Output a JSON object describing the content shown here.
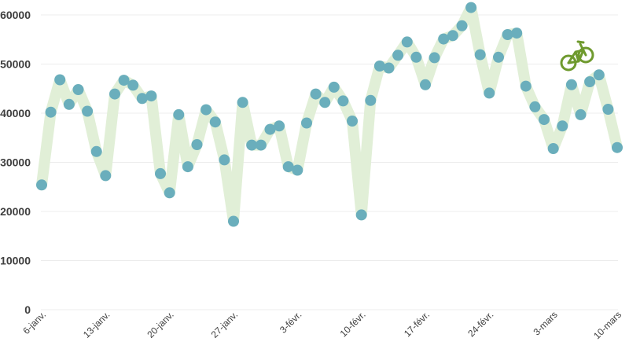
{
  "chart_data": {
    "type": "line",
    "title": "",
    "xlabel": "",
    "ylabel": "",
    "ylim": [
      0,
      60000
    ],
    "yticks": [
      0,
      10000,
      20000,
      30000,
      40000,
      50000,
      60000
    ],
    "x_tick_labels": [
      "6-janv.",
      "13-janv.",
      "20-janv.",
      "27-janv.",
      "3-févr.",
      "10-févr.",
      "17-févr.",
      "24-févr.",
      "3-mars",
      "10-mars"
    ],
    "grid": true,
    "legend": "none",
    "series": [
      {
        "values": [
          25400,
          40200,
          46800,
          41800,
          44800,
          40400,
          32200,
          27300,
          43900,
          46700,
          45700,
          43000,
          43500,
          27700,
          23800,
          39700,
          29100,
          33600,
          40700,
          38200,
          30500,
          18000,
          42200,
          33500,
          33500,
          36700,
          37400,
          29100,
          28400,
          38000,
          43900,
          42200,
          45300,
          42500,
          38400,
          19300,
          42600,
          49600,
          49200,
          51800,
          54500,
          51400,
          45800,
          51300,
          55100,
          55800,
          57800,
          61500,
          51900,
          44100,
          51400,
          56000,
          56300,
          45500,
          41300,
          38700,
          32800,
          37400,
          45800,
          39700,
          46400,
          47800,
          40800,
          33000
        ]
      }
    ],
    "colors": {
      "marker": "#6aaebc",
      "band": "#e1efd7",
      "grid": "#ececec",
      "icon": "#6f9a2e"
    }
  },
  "icons": {
    "corner": "bicycle-icon"
  }
}
